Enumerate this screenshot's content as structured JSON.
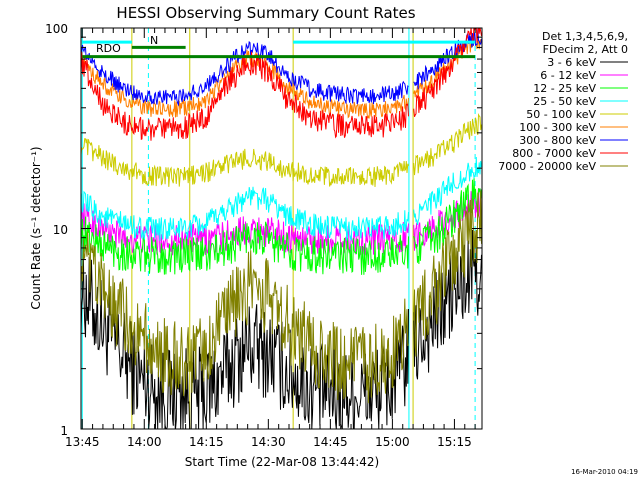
{
  "chart_data": {
    "type": "line",
    "title": "HESSI Observing Summary Count Rates",
    "xlabel": "Start Time (22-Mar-08 13:44:42)",
    "ylabel": "Count Rate (s⁻¹ detector⁻¹)",
    "y_scale": "log",
    "ylim": [
      1,
      100
    ],
    "xlim": [
      "13:44:42",
      "15:21:40"
    ],
    "x_ticks": [
      "13:45",
      "14:00",
      "14:15",
      "14:30",
      "14:45",
      "15:00",
      "15:15"
    ],
    "y_ticks": [
      "1",
      "10",
      "100"
    ],
    "grid": false,
    "legend_position": "right",
    "legend_header": [
      "Det 1,3,4,5,6,9,",
      "FDecim 2, Att 0"
    ],
    "annotations": {
      "rdo": "RDO",
      "n": "N",
      "timestamp": "16-Mar-2010 04:19"
    },
    "x": [
      "13:45",
      "13:50",
      "13:55",
      "14:00",
      "14:05",
      "14:10",
      "14:15",
      "14:20",
      "14:25",
      "14:30",
      "14:35",
      "14:40",
      "14:45",
      "14:50",
      "14:55",
      "15:00",
      "15:05",
      "15:10",
      "15:15",
      "15:20"
    ],
    "series": [
      {
        "name": "3 - 6 keV",
        "color": "#000000",
        "values": [
          5.0,
          3.3,
          2.3,
          1.7,
          1.5,
          1.5,
          1.5,
          2.0,
          2.6,
          2.4,
          1.9,
          1.6,
          1.5,
          1.5,
          1.5,
          1.7,
          2.5,
          3.5,
          4.8,
          6.0
        ]
      },
      {
        "name": "6 - 12 keV",
        "color": "#ff00ff",
        "values": [
          11.5,
          9.8,
          9.0,
          8.8,
          8.8,
          8.8,
          8.8,
          9.2,
          10.0,
          9.6,
          9.0,
          8.8,
          8.8,
          8.8,
          8.8,
          8.8,
          9.2,
          10.2,
          11.5,
          13.5
        ]
      },
      {
        "name": "12 - 25 keV",
        "color": "#00ff00",
        "values": [
          9.5,
          8.2,
          7.6,
          7.3,
          7.3,
          7.3,
          7.4,
          8.0,
          9.2,
          8.6,
          7.7,
          7.4,
          7.3,
          7.3,
          7.3,
          7.4,
          8.0,
          9.0,
          11.5,
          15.0
        ]
      },
      {
        "name": "25 - 50 keV",
        "color": "#00ffff",
        "values": [
          13.5,
          11.5,
          10.5,
          10.0,
          9.9,
          10.0,
          10.5,
          12.5,
          14.5,
          13.8,
          11.5,
          10.5,
          10.0,
          10.0,
          10.0,
          10.3,
          11.5,
          13.5,
          17.0,
          20.0
        ]
      },
      {
        "name": "50 - 100 keV",
        "color": "#cccc00",
        "values": [
          26.0,
          22.5,
          20.0,
          18.5,
          18.0,
          18.2,
          19.0,
          21.0,
          22.5,
          21.5,
          19.5,
          18.5,
          18.0,
          18.0,
          18.0,
          18.5,
          20.0,
          23.0,
          27.0,
          33.0
        ]
      },
      {
        "name": "100 - 300 keV",
        "color": "#ff7f00",
        "values": [
          70.0,
          52.0,
          44.0,
          40.0,
          39.0,
          40.0,
          44.0,
          58.0,
          72.0,
          65.0,
          50.0,
          43.0,
          40.0,
          39.0,
          39.0,
          40.0,
          45.0,
          55.0,
          70.0,
          85.0
        ]
      },
      {
        "name": "300 - 800 keV",
        "color": "#0000ff",
        "values": [
          78.0,
          59.0,
          50.0,
          46.0,
          45.0,
          46.0,
          51.0,
          65.0,
          80.0,
          73.0,
          57.0,
          50.0,
          47.0,
          46.0,
          46.0,
          47.0,
          52.0,
          63.0,
          78.0,
          90.0
        ]
      },
      {
        "name": "800 - 7000 keV",
        "color": "#ff0000",
        "values": [
          68.0,
          42.0,
          34.0,
          31.0,
          31.0,
          32.0,
          36.0,
          52.0,
          68.0,
          60.0,
          43.0,
          36.0,
          33.0,
          32.0,
          32.0,
          33.0,
          38.0,
          50.0,
          70.0,
          95.0
        ]
      },
      {
        "name": "7000 - 20000 keV",
        "color": "#808000",
        "values": [
          7.0,
          4.8,
          3.6,
          2.8,
          2.3,
          2.2,
          2.4,
          3.6,
          5.2,
          4.6,
          3.3,
          2.6,
          2.2,
          2.1,
          2.1,
          2.4,
          3.2,
          4.8,
          7.5,
          10.0
        ]
      }
    ],
    "reference_lines": [
      {
        "name": "RDO",
        "color": "#00ffff",
        "value": 85.0,
        "range": [
          "13:45",
          "13:57"
        ]
      },
      {
        "name": "RDO",
        "color": "#00ffff",
        "value": 85.0,
        "range": [
          "14:36",
          "15:20"
        ]
      },
      {
        "name": "Att",
        "color": "#008000",
        "value": 80.0,
        "range": [
          "13:57",
          "14:10"
        ]
      },
      {
        "name": "Att",
        "color": "#008000",
        "value": 72.0,
        "range": [
          "13:45",
          "15:20"
        ]
      }
    ],
    "vertical_markers": {
      "solid_cyan": [
        "13:45",
        "15:04"
      ],
      "dashed_cyan": [
        "14:01",
        "15:20"
      ],
      "solid_olive": [
        "13:57",
        "14:11",
        "14:36",
        "15:05"
      ]
    }
  }
}
